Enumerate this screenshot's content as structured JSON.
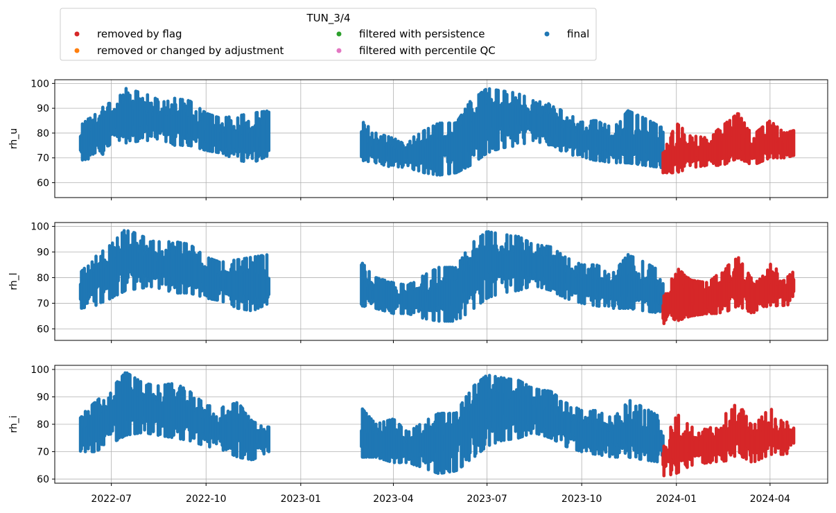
{
  "chart_data": {
    "type": "scatter",
    "legend": {
      "title": "TUN_3/4",
      "placement": "top-left, above plots",
      "entries": [
        {
          "label": "removed by flag",
          "color": "#d62728"
        },
        {
          "label": "removed or changed by adjustment",
          "color": "#ff7f0e"
        },
        {
          "label": "filtered with persistence",
          "color": "#2ca02c"
        },
        {
          "label": "filtered with percentile QC",
          "color": "#e377c2"
        },
        {
          "label": "final",
          "color": "#1f77b4"
        }
      ]
    },
    "x_axis": {
      "type": "date",
      "range": [
        "2022-05-07",
        "2024-05-27"
      ],
      "ticks": [
        "2022-07",
        "2022-10",
        "2023-01",
        "2023-04",
        "2023-07",
        "2023-10",
        "2024-01",
        "2024-04"
      ],
      "tick_dates": [
        "2022-07-01",
        "2022-10-01",
        "2023-01-01",
        "2023-04-01",
        "2023-07-01",
        "2023-10-01",
        "2024-01-01",
        "2024-04-01"
      ]
    },
    "grid": true,
    "series_colors": {
      "final": "#1f77b4",
      "removed_by_flag": "#d62728"
    },
    "panels": [
      {
        "ylabel": "rh_u",
        "ylim": [
          54,
          101.5
        ],
        "yticks": [
          60,
          70,
          80,
          90,
          100
        ],
        "final_segments": [
          {
            "x": [
              "2022-06-01",
              "2022-06-15",
              "2022-07-01",
              "2022-07-15",
              "2022-08-01",
              "2022-08-15",
              "2022-09-01",
              "2022-09-15",
              "2022-10-01",
              "2022-10-15",
              "2022-11-01",
              "2022-11-15",
              "2022-12-01"
            ],
            "lo": [
              69,
              70,
              73,
              76,
              77,
              77,
              75,
              75,
              73,
              72,
              69,
              68,
              71
            ],
            "hi": [
              83,
              88,
              93,
              98,
              96,
              94,
              94,
              93,
              88,
              86,
              87,
              88,
              89
            ],
            "mid": [
              75,
              79,
              83,
              88,
              86,
              84,
              84,
              83,
              79,
              78,
              77,
              76,
              76
            ]
          },
          {
            "x": [
              "2023-03-01",
              "2023-03-15",
              "2023-04-01",
              "2023-04-15",
              "2023-05-01",
              "2023-05-15",
              "2023-06-01",
              "2023-06-15",
              "2023-07-01",
              "2023-07-15",
              "2023-08-01",
              "2023-08-15",
              "2023-09-01",
              "2023-09-15",
              "2023-10-01",
              "2023-10-15",
              "2023-11-01",
              "2023-11-15",
              "2023-12-01",
              "2023-12-19"
            ],
            "lo": [
              69,
              68,
              66,
              66,
              64,
              63,
              64,
              67,
              72,
              74,
              75,
              77,
              75,
              72,
              70,
              69,
              68,
              68,
              67,
              66
            ],
            "hi": [
              85,
              80,
              78,
              77,
              81,
              84,
              84,
              93,
              98,
              97,
              96,
              93,
              92,
              88,
              85,
              85,
              82,
              89,
              86,
              82
            ],
            "mid": [
              74,
              73,
              72,
              71,
              72,
              73,
              75,
              80,
              86,
              86,
              86,
              85,
              82,
              80,
              77,
              76,
              75,
              76,
              74,
              72
            ]
          }
        ],
        "flag_segment": {
          "x": [
            "2023-12-19",
            "2024-01-01",
            "2024-01-15",
            "2024-02-01",
            "2024-02-15",
            "2024-03-01",
            "2024-03-15",
            "2024-04-01",
            "2024-04-15",
            "2024-04-24"
          ],
          "lo": [
            64,
            64,
            66,
            67,
            67,
            70,
            67,
            70,
            70,
            71
          ],
          "hi": [
            72,
            84,
            79,
            78,
            83,
            88,
            79,
            85,
            80,
            81
          ],
          "mid": [
            67,
            71,
            72,
            72,
            73,
            77,
            73,
            75,
            74,
            75
          ]
        }
      },
      {
        "ylabel": "rh_l",
        "ylim": [
          55.5,
          101.5
        ],
        "yticks": [
          60,
          70,
          80,
          90,
          100
        ],
        "final_segments": [
          {
            "x": [
              "2022-06-01",
              "2022-06-15",
              "2022-07-01",
              "2022-07-15",
              "2022-08-01",
              "2022-08-15",
              "2022-09-01",
              "2022-09-15",
              "2022-10-01",
              "2022-10-15",
              "2022-11-01",
              "2022-11-15",
              "2022-12-01"
            ],
            "lo": [
              68,
              69,
              72,
              75,
              76,
              76,
              74,
              74,
              72,
              71,
              68,
              67,
              70
            ],
            "hi": [
              82,
              88,
              93,
              99,
              96,
              94,
              94,
              93,
              88,
              86,
              87,
              88,
              89
            ],
            "mid": [
              75,
              79,
              83,
              88,
              86,
              84,
              84,
              83,
              79,
              78,
              77,
              76,
              76
            ]
          },
          {
            "x": [
              "2023-03-01",
              "2023-03-15",
              "2023-04-01",
              "2023-04-15",
              "2023-05-01",
              "2023-05-15",
              "2023-06-01",
              "2023-06-15",
              "2023-07-01",
              "2023-07-15",
              "2023-08-01",
              "2023-08-15",
              "2023-09-01",
              "2023-09-15",
              "2023-10-01",
              "2023-10-15",
              "2023-11-01",
              "2023-11-15",
              "2023-12-01",
              "2023-12-19"
            ],
            "lo": [
              69,
              68,
              66,
              66,
              64,
              63,
              63,
              67,
              72,
              74,
              75,
              77,
              75,
              72,
              70,
              69,
              68,
              68,
              67,
              66
            ],
            "hi": [
              86,
              80,
              78,
              77,
              81,
              84,
              84,
              93,
              98,
              97,
              96,
              93,
              92,
              88,
              85,
              85,
              82,
              89,
              86,
              82
            ],
            "mid": [
              74,
              73,
              72,
              71,
              72,
              73,
              75,
              80,
              86,
              86,
              86,
              85,
              82,
              80,
              77,
              76,
              75,
              76,
              74,
              72
            ]
          }
        ],
        "flag_segment": {
          "x": [
            "2023-12-19",
            "2024-01-01",
            "2024-01-15",
            "2024-02-01",
            "2024-02-15",
            "2024-03-01",
            "2024-03-15",
            "2024-04-01",
            "2024-04-15",
            "2024-04-24"
          ],
          "lo": [
            62,
            63,
            65,
            66,
            66,
            69,
            66,
            69,
            69,
            70
          ],
          "hi": [
            72,
            84,
            79,
            78,
            83,
            88,
            79,
            86,
            80,
            84
          ],
          "mid": [
            67,
            71,
            72,
            72,
            73,
            77,
            73,
            75,
            74,
            76
          ]
        }
      },
      {
        "ylabel": "rh_i",
        "ylim": [
          58.5,
          101.5
        ],
        "yticks": [
          60,
          70,
          80,
          90,
          100
        ],
        "final_segments": [
          {
            "x": [
              "2022-06-01",
              "2022-06-15",
              "2022-07-01",
              "2022-07-15",
              "2022-08-01",
              "2022-08-15",
              "2022-09-01",
              "2022-09-15",
              "2022-10-01",
              "2022-10-15",
              "2022-11-01",
              "2022-11-15",
              "2022-12-01"
            ],
            "lo": [
              70,
              70,
              73,
              76,
              77,
              76,
              75,
              74,
              72,
              71,
              68,
              67,
              70
            ],
            "hi": [
              83,
              88,
              93,
              99,
              95,
              94,
              95,
              92,
              87,
              86,
              88,
              81,
              79
            ],
            "mid": [
              75,
              79,
              83,
              88,
              86,
              84,
              84,
              82,
              79,
              78,
              77,
              75,
              75
            ]
          },
          {
            "x": [
              "2023-03-01",
              "2023-03-15",
              "2023-04-01",
              "2023-04-15",
              "2023-05-01",
              "2023-05-15",
              "2023-06-01",
              "2023-06-15",
              "2023-07-01",
              "2023-07-15",
              "2023-08-01",
              "2023-08-15",
              "2023-09-01",
              "2023-09-15",
              "2023-10-01",
              "2023-10-15",
              "2023-11-01",
              "2023-11-15",
              "2023-12-01",
              "2023-12-19"
            ],
            "lo": [
              68,
              68,
              66,
              66,
              64,
              62,
              63,
              67,
              72,
              74,
              75,
              77,
              75,
              72,
              70,
              69,
              68,
              68,
              67,
              66
            ],
            "hi": [
              86,
              80,
              82,
              77,
              81,
              84,
              84,
              93,
              98,
              97,
              96,
              93,
              92,
              88,
              85,
              85,
              82,
              89,
              86,
              82
            ],
            "mid": [
              74,
              73,
              72,
              71,
              72,
              73,
              75,
              80,
              86,
              86,
              86,
              85,
              82,
              80,
              77,
              76,
              75,
              76,
              74,
              72
            ]
          }
        ],
        "flag_segment": {
          "x": [
            "2023-12-19",
            "2024-01-01",
            "2024-01-15",
            "2024-02-01",
            "2024-02-15",
            "2024-03-01",
            "2024-03-15",
            "2024-04-01",
            "2024-04-15",
            "2024-04-24"
          ],
          "lo": [
            61,
            62,
            65,
            66,
            66,
            69,
            66,
            69,
            69,
            70
          ],
          "hi": [
            72,
            84,
            79,
            78,
            83,
            88,
            79,
            86,
            80,
            83
          ],
          "mid": [
            67,
            71,
            72,
            72,
            73,
            77,
            73,
            75,
            74,
            76
          ]
        }
      }
    ]
  }
}
